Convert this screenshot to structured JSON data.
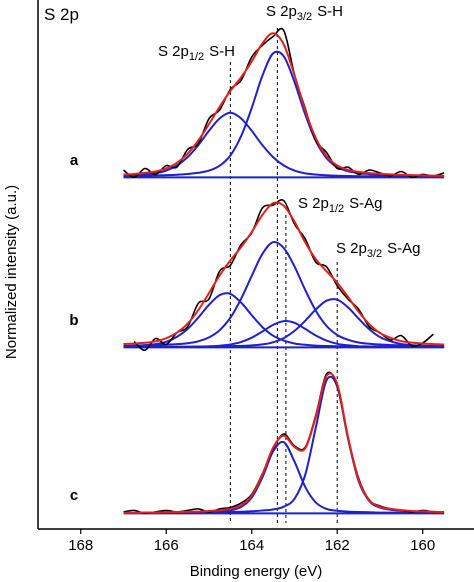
{
  "chart_data": {
    "type": "xps",
    "title": "S 2p",
    "x_label": "Binding energy (eV)",
    "y_label": "Normalized intensity (a.u.)",
    "xlim": [
      169,
      158.8
    ],
    "xticks": [
      168,
      166,
      164,
      162,
      160
    ],
    "x": [
      167,
      166.75,
      166.5,
      166.25,
      166,
      165.75,
      165.5,
      165.25,
      165,
      164.75,
      164.5,
      164.25,
      164,
      163.75,
      163.5,
      163.25,
      163,
      162.75,
      162.5,
      162.25,
      162,
      161.75,
      161.5,
      161.25,
      161,
      160.75,
      160.5,
      160.25,
      160,
      159.75,
      159.5
    ],
    "reference_lines": [
      164.5,
      163.4,
      163.2,
      162.0
    ],
    "annotations": [
      {
        "text": "S 2p",
        "sub": "3/2",
        "suffix": "S-H"
      },
      {
        "text": "S 2p",
        "sub": "1/2",
        "suffix": "S-H"
      },
      {
        "text": "S 2p",
        "sub": "1/2",
        "suffix": "S-Ag"
      },
      {
        "text": "S 2p",
        "sub": "3/2",
        "suffix": "S-Ag"
      }
    ],
    "panels": [
      {
        "label": "a",
        "ylim": [
          -0.1,
          1.1
        ],
        "series": [
          {
            "color": "#2020cc",
            "values": [
              0.008,
              0.009,
              0.011,
              0.013,
              0.015,
              0.018,
              0.023,
              0.031,
              0.046,
              0.079,
              0.149,
              0.279,
              0.473,
              0.693,
              0.845,
              0.825,
              0.65,
              0.43,
              0.248,
              0.131,
              0.07,
              0.042,
              0.029,
              0.022,
              0.018,
              0.015,
              0.012,
              0.011,
              0.009,
              0.008,
              0.007
            ]
          },
          {
            "color": "#2020cc",
            "values": [
              0.011,
              0.014,
              0.019,
              0.027,
              0.046,
              0.081,
              0.138,
              0.22,
              0.317,
              0.402,
              0.44,
              0.402,
              0.317,
              0.22,
              0.138,
              0.081,
              0.046,
              0.027,
              0.019,
              0.014,
              0.011,
              0.009,
              0.008,
              0.007,
              0.006,
              0.005,
              0.005,
              0.004,
              0.004,
              0.003,
              0.003
            ]
          },
          {
            "color": "#000000",
            "values": [
              0.05,
              0.0,
              0.06,
              0.02,
              0.08,
              0.07,
              0.19,
              0.23,
              0.4,
              0.46,
              0.6,
              0.66,
              0.82,
              0.9,
              0.96,
              1.0,
              0.7,
              0.47,
              0.25,
              0.17,
              0.06,
              0.07,
              0.02,
              0.05,
              0.03,
              0.01,
              0.04,
              0.0,
              0.02,
              0.01,
              0.03
            ]
          },
          {
            "color": "#e3201b",
            "values": [
              0.019,
              0.023,
              0.03,
              0.04,
              0.061,
              0.099,
              0.161,
              0.251,
              0.363,
              0.481,
              0.589,
              0.681,
              0.79,
              0.913,
              0.983,
              0.906,
              0.696,
              0.457,
              0.267,
              0.145,
              0.081,
              0.051,
              0.037,
              0.029,
              0.024,
              0.02,
              0.017,
              0.015,
              0.013,
              0.011,
              0.01
            ]
          }
        ]
      },
      {
        "label": "b",
        "ylim": [
          -0.1,
          1.1
        ],
        "series": [
          {
            "color": "#2020cc",
            "values": [
              0.009,
              0.011,
              0.015,
              0.022,
              0.038,
              0.071,
              0.125,
              0.203,
              0.29,
              0.356,
              0.364,
              0.306,
              0.22,
              0.138,
              0.079,
              0.046,
              0.026,
              0.017,
              0.012,
              0.009,
              0.007,
              0.006,
              0.005,
              0.005,
              0.004,
              0.004,
              0.003,
              0.003,
              0.003,
              0.003,
              0.002
            ]
          },
          {
            "color": "#2020cc",
            "values": [
              0.009,
              0.011,
              0.012,
              0.014,
              0.018,
              0.022,
              0.028,
              0.041,
              0.068,
              0.117,
              0.202,
              0.33,
              0.487,
              0.637,
              0.717,
              0.677,
              0.552,
              0.392,
              0.25,
              0.146,
              0.084,
              0.052,
              0.033,
              0.024,
              0.019,
              0.016,
              0.013,
              0.011,
              0.01,
              0.009,
              0.008
            ]
          },
          {
            "color": "#2020cc",
            "values": [
              0.002,
              0.002,
              0.002,
              0.002,
              0.003,
              0.003,
              0.004,
              0.005,
              0.007,
              0.011,
              0.019,
              0.036,
              0.066,
              0.108,
              0.153,
              0.179,
              0.167,
              0.126,
              0.081,
              0.046,
              0.024,
              0.014,
              0.008,
              0.006,
              0.005,
              0.004,
              0.003,
              0.003,
              0.002,
              0.002,
              0.002
            ]
          },
          {
            "color": "#2020cc",
            "values": [
              0.002,
              0.002,
              0.002,
              0.003,
              0.003,
              0.004,
              0.004,
              0.005,
              0.005,
              0.007,
              0.008,
              0.01,
              0.013,
              0.02,
              0.034,
              0.063,
              0.112,
              0.181,
              0.258,
              0.318,
              0.325,
              0.273,
              0.196,
              0.123,
              0.07,
              0.041,
              0.023,
              0.015,
              0.011,
              0.008,
              0.007
            ]
          },
          {
            "color": "#000000",
            "values": [
              null,
              0.04,
              -0.02,
              0.06,
              0.02,
              0.1,
              0.14,
              0.3,
              0.33,
              0.52,
              0.56,
              0.7,
              0.78,
              0.95,
              0.97,
              1.0,
              0.84,
              0.74,
              0.58,
              0.55,
              0.42,
              0.33,
              0.26,
              0.14,
              0.1,
              0.05,
              0.08,
              0.01,
              0.03,
              0.09,
              null
            ]
          },
          {
            "color": "#e3201b",
            "values": [
              0.022,
              0.026,
              0.031,
              0.041,
              0.062,
              0.1,
              0.161,
              0.254,
              0.37,
              0.491,
              0.593,
              0.682,
              0.786,
              0.903,
              0.983,
              0.965,
              0.857,
              0.716,
              0.601,
              0.519,
              0.44,
              0.345,
              0.242,
              0.158,
              0.098,
              0.065,
              0.042,
              0.032,
              0.026,
              0.022,
              0.019
            ]
          }
        ]
      },
      {
        "label": "c",
        "ylim": [
          -0.1,
          1.1
        ],
        "series": [
          {
            "color": "#2020cc",
            "values": [
              0.002,
              0.002,
              0.003,
              0.003,
              0.004,
              0.005,
              0.006,
              0.007,
              0.01,
              0.013,
              0.021,
              0.043,
              0.107,
              0.245,
              0.422,
              0.485,
              0.353,
              0.181,
              0.074,
              0.03,
              0.017,
              0.012,
              0.009,
              0.007,
              0.005,
              0.005,
              0.004,
              0.003,
              0.003,
              0.002,
              0.002
            ]
          },
          {
            "color": "#2020cc",
            "values": [
              0.002,
              0.002,
              0.003,
              0.003,
              0.003,
              0.004,
              0.005,
              0.005,
              0.006,
              0.008,
              0.009,
              0.011,
              0.014,
              0.019,
              0.026,
              0.045,
              0.099,
              0.262,
              0.585,
              0.907,
              0.865,
              0.513,
              0.219,
              0.084,
              0.039,
              0.025,
              0.018,
              0.013,
              0.01,
              0.009,
              0.007
            ]
          },
          {
            "color": "#000000",
            "values": [
              0.01,
              0.02,
              0.0,
              0.01,
              0.02,
              0.01,
              0.02,
              0.03,
              0.01,
              0.03,
              0.04,
              0.07,
              0.13,
              0.27,
              0.44,
              0.54,
              0.46,
              0.45,
              0.67,
              0.95,
              0.87,
              0.52,
              0.24,
              0.09,
              0.05,
              0.03,
              0.02,
              0.01,
              0.02,
              0.01,
              null
            ]
          },
          {
            "color": "#e3201b",
            "values": [
              0.004,
              0.004,
              0.006,
              0.006,
              0.007,
              0.009,
              0.011,
              0.012,
              0.016,
              0.021,
              0.03,
              0.054,
              0.121,
              0.264,
              0.448,
              0.53,
              0.452,
              0.443,
              0.659,
              0.937,
              0.882,
              0.525,
              0.228,
              0.091,
              0.044,
              0.03,
              0.022,
              0.016,
              0.013,
              0.011,
              0.009
            ]
          }
        ]
      }
    ]
  }
}
